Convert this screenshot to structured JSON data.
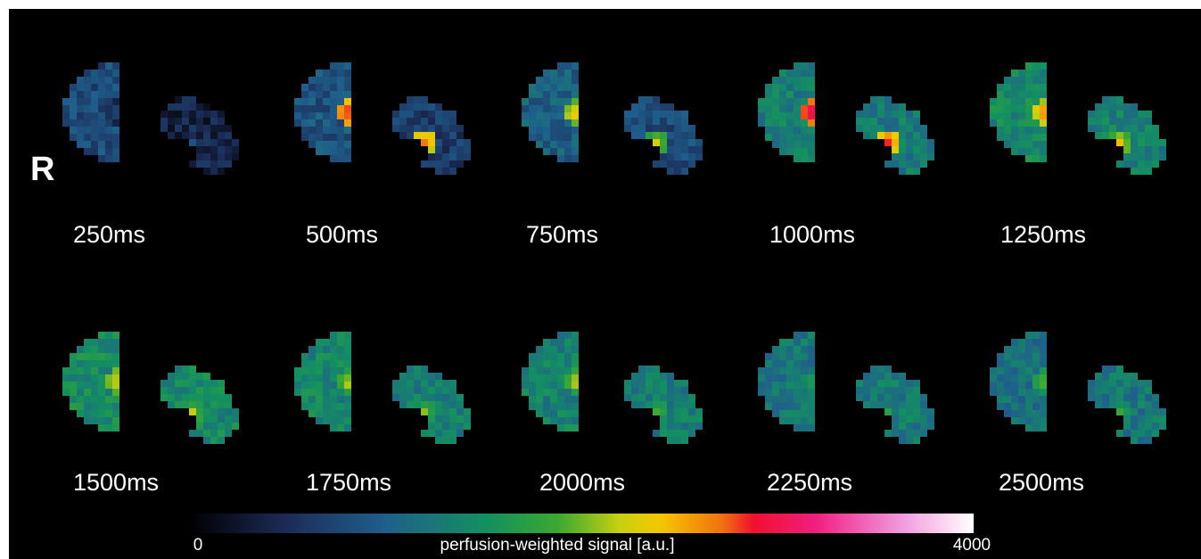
{
  "marker": "R",
  "panels": [
    {
      "label": "250ms"
    },
    {
      "label": "500ms"
    },
    {
      "label": "750ms"
    },
    {
      "label": "1000ms"
    },
    {
      "label": "1250ms"
    },
    {
      "label": "1500ms"
    },
    {
      "label": "1750ms"
    },
    {
      "label": "2000ms"
    },
    {
      "label": "2250ms"
    },
    {
      "label": "2500ms"
    }
  ],
  "colorbar": {
    "min": 0,
    "max": 4000,
    "label": "perfusion-weighted signal [a.u.]"
  }
}
